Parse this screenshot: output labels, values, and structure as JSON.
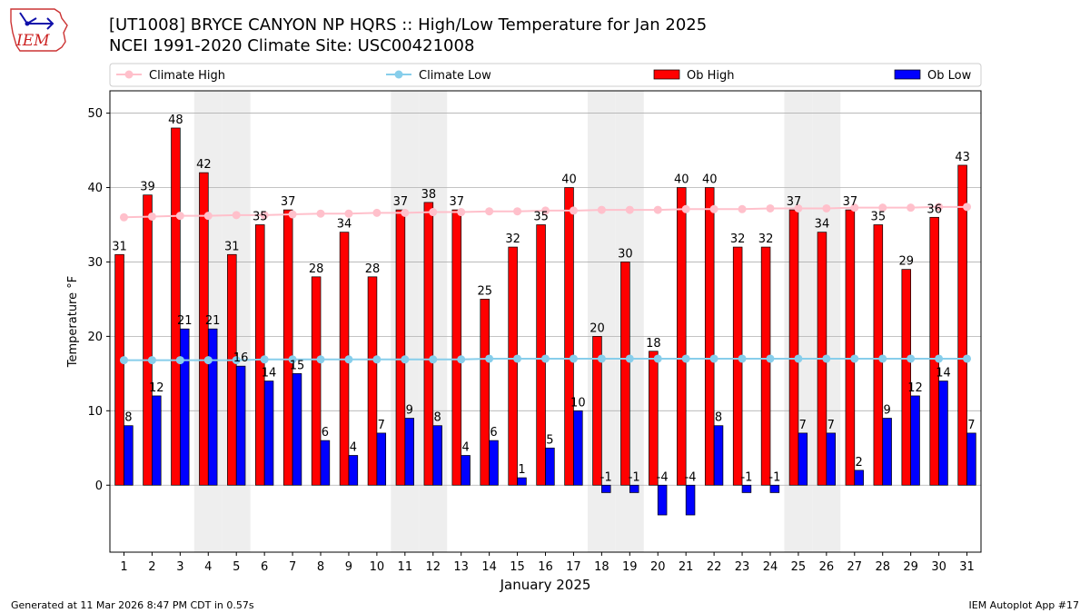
{
  "header": {
    "title": "[UT1008] BRYCE CANYON NP HQRS :: High/Low Temperature for Jan 2025",
    "subtitle": "NCEI 1991-2020 Climate Site: USC00421008",
    "logo_text": "IEM"
  },
  "footer": {
    "left": "Generated at 11 Mar 2026 8:47 PM CDT in 0.57s",
    "right": "IEM Autoplot App #17"
  },
  "chart_data": {
    "type": "bar",
    "title": "[UT1008] BRYCE CANYON NP HQRS :: High/Low Temperature for Jan 2025",
    "xlabel": "January 2025",
    "ylabel": "Temperature °F",
    "ylim": [
      -9,
      53
    ],
    "yticks": [
      0,
      10,
      20,
      30,
      40,
      50
    ],
    "grid": true,
    "legend_position": "top",
    "categories": [
      "1",
      "2",
      "3",
      "4",
      "5",
      "6",
      "7",
      "8",
      "9",
      "10",
      "11",
      "12",
      "13",
      "14",
      "15",
      "16",
      "17",
      "18",
      "19",
      "20",
      "21",
      "22",
      "23",
      "24",
      "25",
      "26",
      "27",
      "28",
      "29",
      "30",
      "31"
    ],
    "weekend_days": [
      4,
      5,
      11,
      12,
      18,
      19,
      25,
      26
    ],
    "series": [
      {
        "name": "Ob High",
        "type": "bar",
        "color": "#ff0000",
        "values": [
          31,
          39,
          48,
          42,
          31,
          35,
          37,
          28,
          34,
          28,
          37,
          38,
          37,
          25,
          32,
          35,
          40,
          20,
          30,
          18,
          40,
          40,
          32,
          32,
          37,
          34,
          37,
          35,
          29,
          36,
          43
        ]
      },
      {
        "name": "Ob Low",
        "type": "bar",
        "color": "#0000ff",
        "values": [
          8,
          12,
          21,
          21,
          16,
          14,
          15,
          6,
          4,
          7,
          9,
          8,
          4,
          6,
          1,
          5,
          10,
          -1,
          -1,
          -4,
          -4,
          8,
          -1,
          -1,
          7,
          7,
          2,
          9,
          12,
          14,
          7
        ]
      },
      {
        "name": "Climate High",
        "type": "line",
        "color": "#ffc0cb",
        "values": [
          36.0,
          36.1,
          36.2,
          36.2,
          36.3,
          36.3,
          36.4,
          36.5,
          36.5,
          36.6,
          36.6,
          36.7,
          36.7,
          36.8,
          36.8,
          36.9,
          36.9,
          37.0,
          37.0,
          37.0,
          37.1,
          37.1,
          37.1,
          37.2,
          37.2,
          37.2,
          37.3,
          37.3,
          37.3,
          37.4,
          37.4
        ]
      },
      {
        "name": "Climate Low",
        "type": "line",
        "color": "#87ceeb",
        "values": [
          16.8,
          16.8,
          16.8,
          16.8,
          16.8,
          16.9,
          16.9,
          16.9,
          16.9,
          16.9,
          16.9,
          16.9,
          16.9,
          17.0,
          17.0,
          17.0,
          17.0,
          17.0,
          17.0,
          17.0,
          17.0,
          17.0,
          17.0,
          17.0,
          17.0,
          17.0,
          17.0,
          17.0,
          17.0,
          17.0,
          17.0
        ]
      }
    ],
    "legend": [
      "Climate High",
      "Climate Low",
      "Ob High",
      "Ob Low"
    ]
  }
}
